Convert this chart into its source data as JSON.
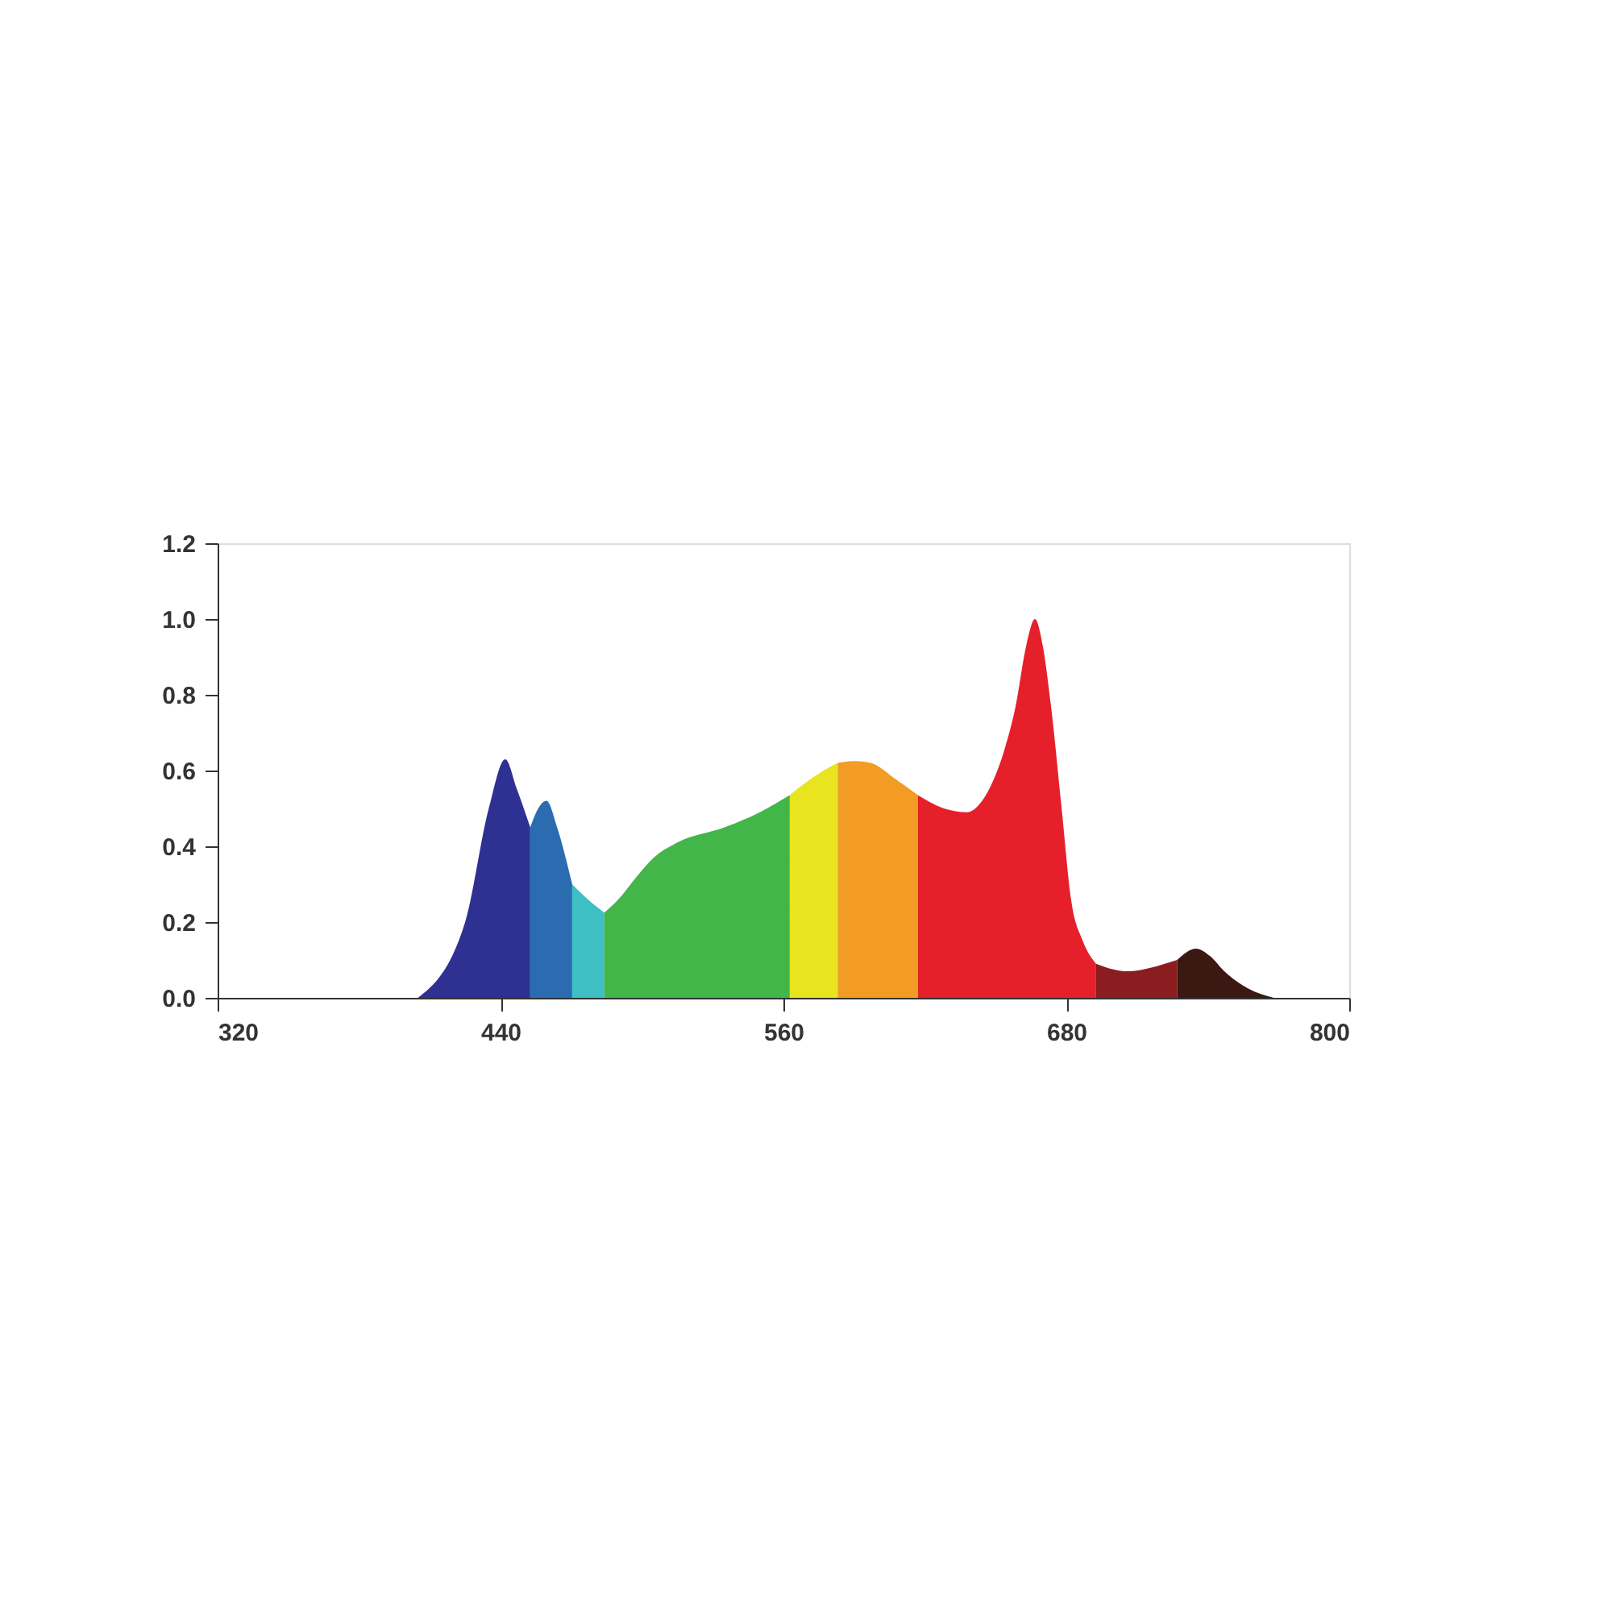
{
  "chart_data": {
    "type": "area",
    "xlim": [
      320,
      800
    ],
    "ylim": [
      0,
      1.2
    ],
    "xticks": [
      320,
      440,
      560,
      680,
      800
    ],
    "yticks": [
      {
        "value": 0,
        "label": "0.0"
      },
      {
        "value": 0.2,
        "label": "0.2"
      },
      {
        "value": 0.4,
        "label": "0.4"
      },
      {
        "value": 0.6,
        "label": "0.6"
      },
      {
        "value": 0.8,
        "label": "0.8"
      },
      {
        "value": 1,
        "label": "1.0"
      },
      {
        "value": 1.2,
        "label": "1.2"
      }
    ],
    "grid": false,
    "legend": false,
    "series": [
      {
        "color": "#2e3192",
        "x": [
          405,
          425,
          435,
          442,
          447,
          452.6
        ],
        "values": [
          0,
          0.2,
          0.5,
          0.63,
          0.55,
          0.45
        ]
      },
      {
        "color": "#2b6cb0",
        "x": [
          452.6,
          456,
          459.5,
          464,
          470.4
        ],
        "values": [
          0.45,
          0.5,
          0.52,
          0.45,
          0.3
        ]
      },
      {
        "color": "#3dbfc4",
        "x": [
          470.4,
          477,
          484
        ],
        "values": [
          0.3,
          0.26,
          0.225
        ]
      },
      {
        "color": "#42b649",
        "x": [
          484,
          490,
          497.8,
          505,
          515,
          535,
          550,
          562.7
        ],
        "values": [
          0.225,
          0.26,
          0.32,
          0.37,
          0.41,
          0.45,
          0.49,
          0.535
        ]
      },
      {
        "color": "#e8e41f",
        "x": [
          562.7,
          572,
          583
        ],
        "values": [
          0.535,
          0.58,
          0.62
        ]
      },
      {
        "color": "#f39c25",
        "x": [
          583,
          590,
          597,
          607,
          617
        ],
        "values": [
          0.62,
          0.625,
          0.62,
          0.58,
          0.535
        ]
      },
      {
        "color": "#e5202b",
        "x": [
          617,
          628,
          638,
          643,
          648,
          654,
          658.5,
          663,
          666.7,
          670,
          673.5,
          678,
          682,
          687,
          692.6
        ],
        "values": [
          0.535,
          0.5,
          0.49,
          0.51,
          0.56,
          0.66,
          0.77,
          0.93,
          1.0,
          0.93,
          0.77,
          0.5,
          0.26,
          0.15,
          0.09
        ]
      },
      {
        "color": "#8b1c1f",
        "x": [
          692.6,
          700,
          706,
          716,
          727
        ],
        "values": [
          0.09,
          0.075,
          0.07,
          0.08,
          0.1
        ]
      },
      {
        "color": "#3b1812",
        "x": [
          727,
          735,
          741,
          747,
          757,
          768
        ],
        "values": [
          0.1,
          0.13,
          0.11,
          0.07,
          0.025,
          0
        ]
      }
    ]
  }
}
